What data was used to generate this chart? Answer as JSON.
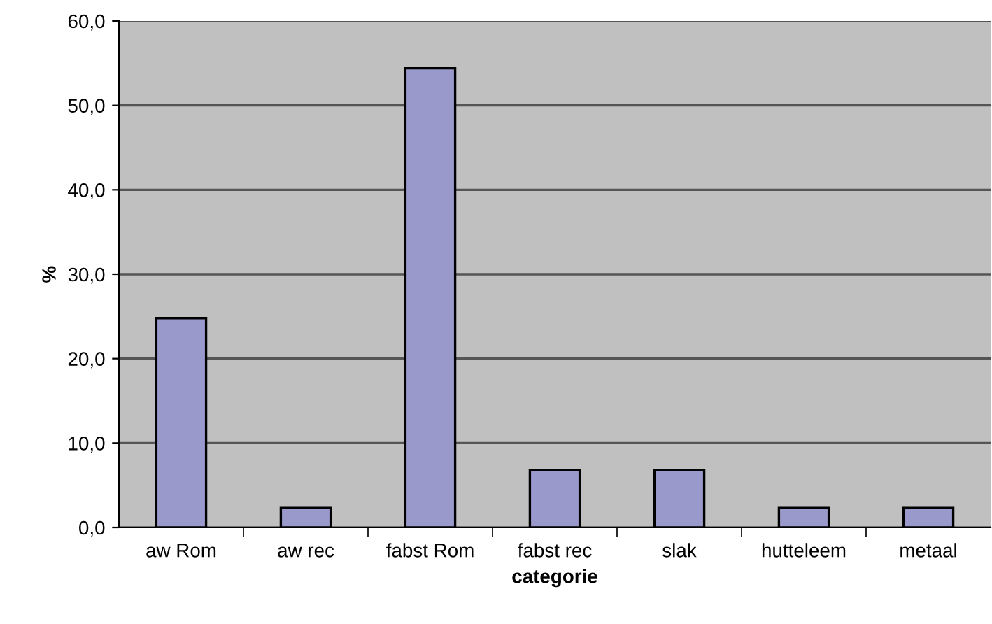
{
  "chart_data": {
    "type": "bar",
    "xlabel": "categorie",
    "ylabel": "%",
    "categories": [
      "aw Rom",
      "aw rec",
      "fabst Rom",
      "fabst rec",
      "slak",
      "hutteleem",
      "metaal"
    ],
    "values": [
      24.8,
      2.3,
      54.4,
      6.8,
      6.8,
      2.3,
      2.3
    ],
    "color": "#9999cc",
    "ylim": [
      0,
      60
    ],
    "yticks": [
      {
        "value": 0,
        "label": "0,0"
      },
      {
        "value": 10,
        "label": "10,0"
      },
      {
        "value": 20,
        "label": "20,0"
      },
      {
        "value": 30,
        "label": "30,0"
      },
      {
        "value": 40,
        "label": "40,0"
      },
      {
        "value": 50,
        "label": "50,0"
      },
      {
        "value": 60,
        "label": "60,0"
      }
    ],
    "grid": "y",
    "legend": false
  }
}
